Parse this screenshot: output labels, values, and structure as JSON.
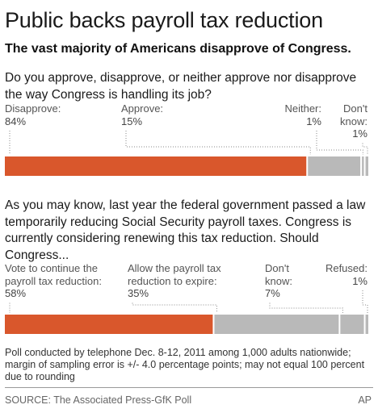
{
  "title": "Public backs payroll tax reduction",
  "subtitle": "The vast majority of Americans disapprove of Congress.",
  "colors": {
    "primary": "#d9572c",
    "secondary": "#b9b9b9",
    "divider": "#ffffff"
  },
  "chart_data": [
    {
      "type": "bar",
      "orientation": "horizontal-stacked",
      "question": "Do you approve, disapprove, or neither approve nor disapprove the way Congress is handling its job?",
      "categories": [
        "Disapprove",
        "Approve",
        "Neither",
        "Don't know"
      ],
      "label_lines": [
        [
          "Disapprove:",
          "84%"
        ],
        [
          "Approve:",
          "15%"
        ],
        [
          "Neither:",
          "1%"
        ],
        [
          "Don't",
          "know:",
          "1%"
        ]
      ],
      "values": [
        84,
        15,
        1,
        1
      ],
      "unit": "%"
    },
    {
      "type": "bar",
      "orientation": "horizontal-stacked",
      "question": "As you may know, last year the federal government passed a law temporarily reducing Social Security payroll taxes. Congress is currently considering renewing this tax reduction. Should Congress...",
      "categories": [
        "Vote to continue the payroll tax reduction",
        "Allow the payroll tax reduction to expire",
        "Don't know",
        "Refused"
      ],
      "label_lines": [
        [
          "Vote to continue the",
          "payroll tax reduction:",
          "58%"
        ],
        [
          "Allow the payroll tax",
          "reduction to expire:",
          "35%"
        ],
        [
          "Don't",
          "know:",
          "7%"
        ],
        [
          "Refused:",
          "1%"
        ]
      ],
      "values": [
        58,
        35,
        7,
        1
      ],
      "unit": "%"
    }
  ],
  "footnote": "Poll conducted by telephone Dec. 8-12, 2011 among 1,000 adults nationwide; margin of sampling error is +/- 4.0 percentage points; may not equal 100 percent due to rounding",
  "source": "SOURCE: The Associated Press-GfK Poll",
  "credit": "AP"
}
